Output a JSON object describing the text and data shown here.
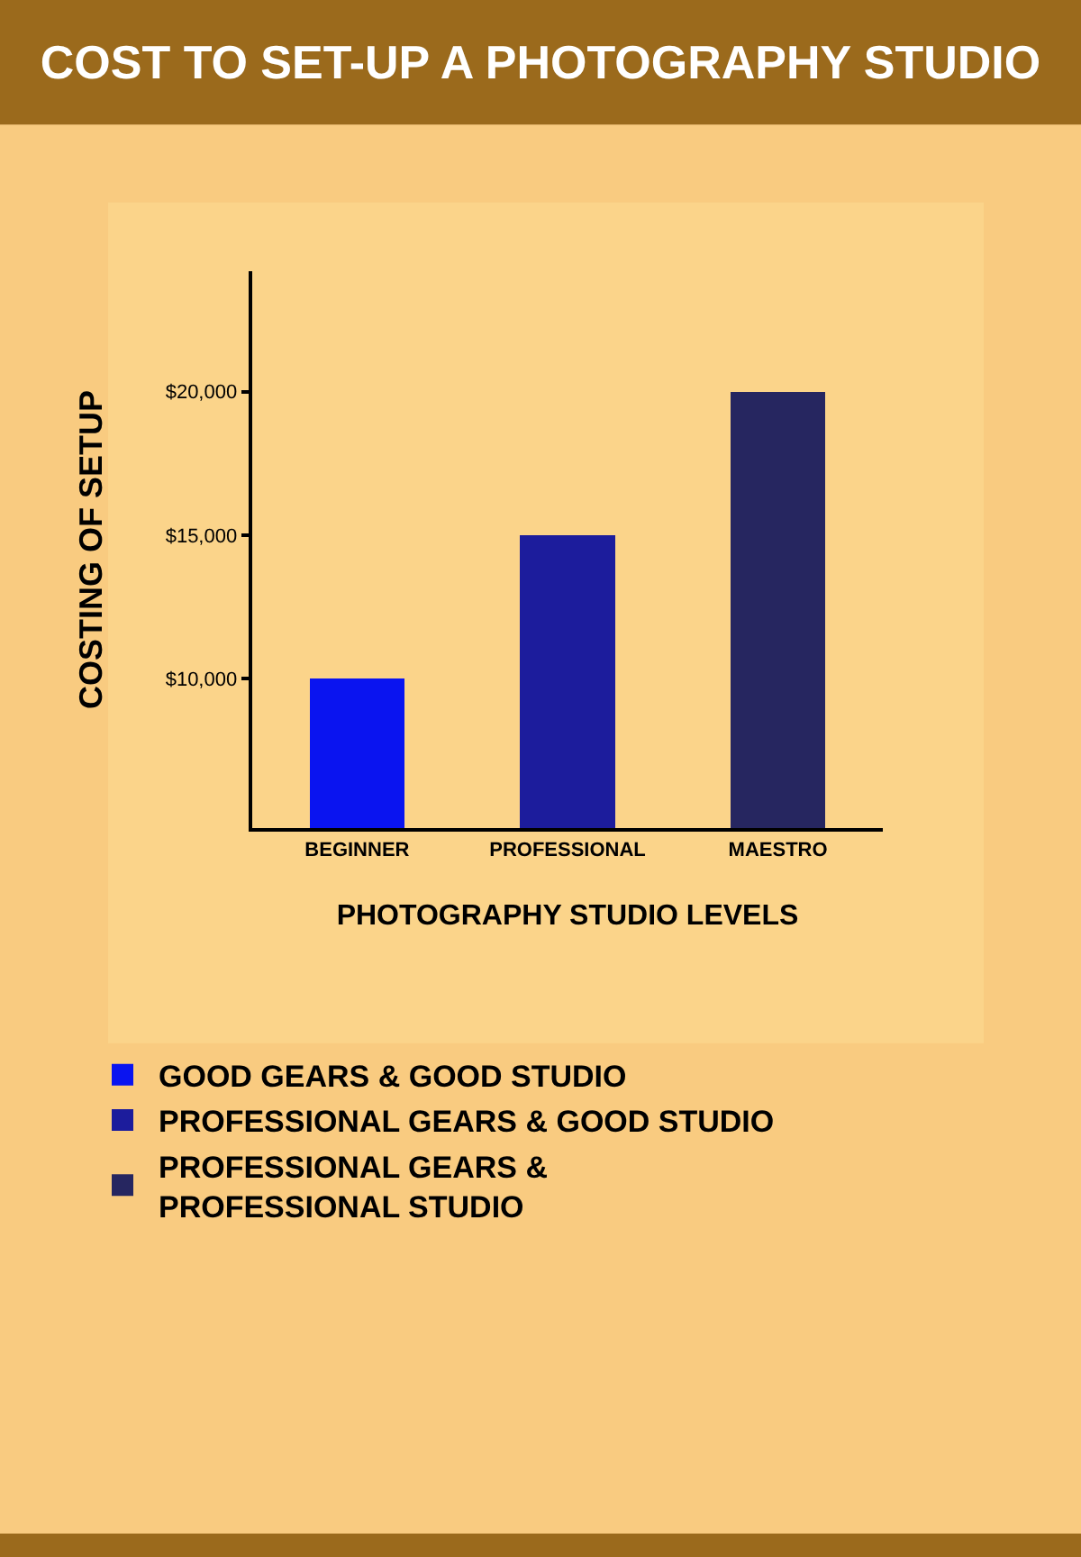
{
  "chart_data": {
    "type": "bar",
    "title": "COST TO SET-UP A PHOTOGRAPHY STUDIO",
    "xlabel": "PHOTOGRAPHY STUDIO LEVELS",
    "ylabel": "COSTING OF SETUP",
    "categories": [
      "BEGINNER",
      "PROFESSIONAL",
      "MAESTRO"
    ],
    "series": [
      {
        "name": "GOOD GEARS & GOOD STUDIO",
        "color": "#0a14f0",
        "values": [
          10000,
          null,
          null
        ]
      },
      {
        "name": "PROFESSIONAL GEARS & GOOD STUDIO",
        "color": "#1c1c9c",
        "values": [
          null,
          15000,
          null
        ]
      },
      {
        "name": "PROFESSIONAL GEARS & PROFESSIONAL STUDIO",
        "color": "#262660",
        "values": [
          null,
          null,
          20000
        ]
      }
    ],
    "stacked": true,
    "ylim": [
      4800,
      24200
    ],
    "yticks": [
      {
        "value": 10000,
        "label": "$10,000"
      },
      {
        "value": 15000,
        "label": "$15,000"
      },
      {
        "value": 20000,
        "label": "$20,000"
      }
    ],
    "grid": false,
    "legend": "bottom"
  }
}
